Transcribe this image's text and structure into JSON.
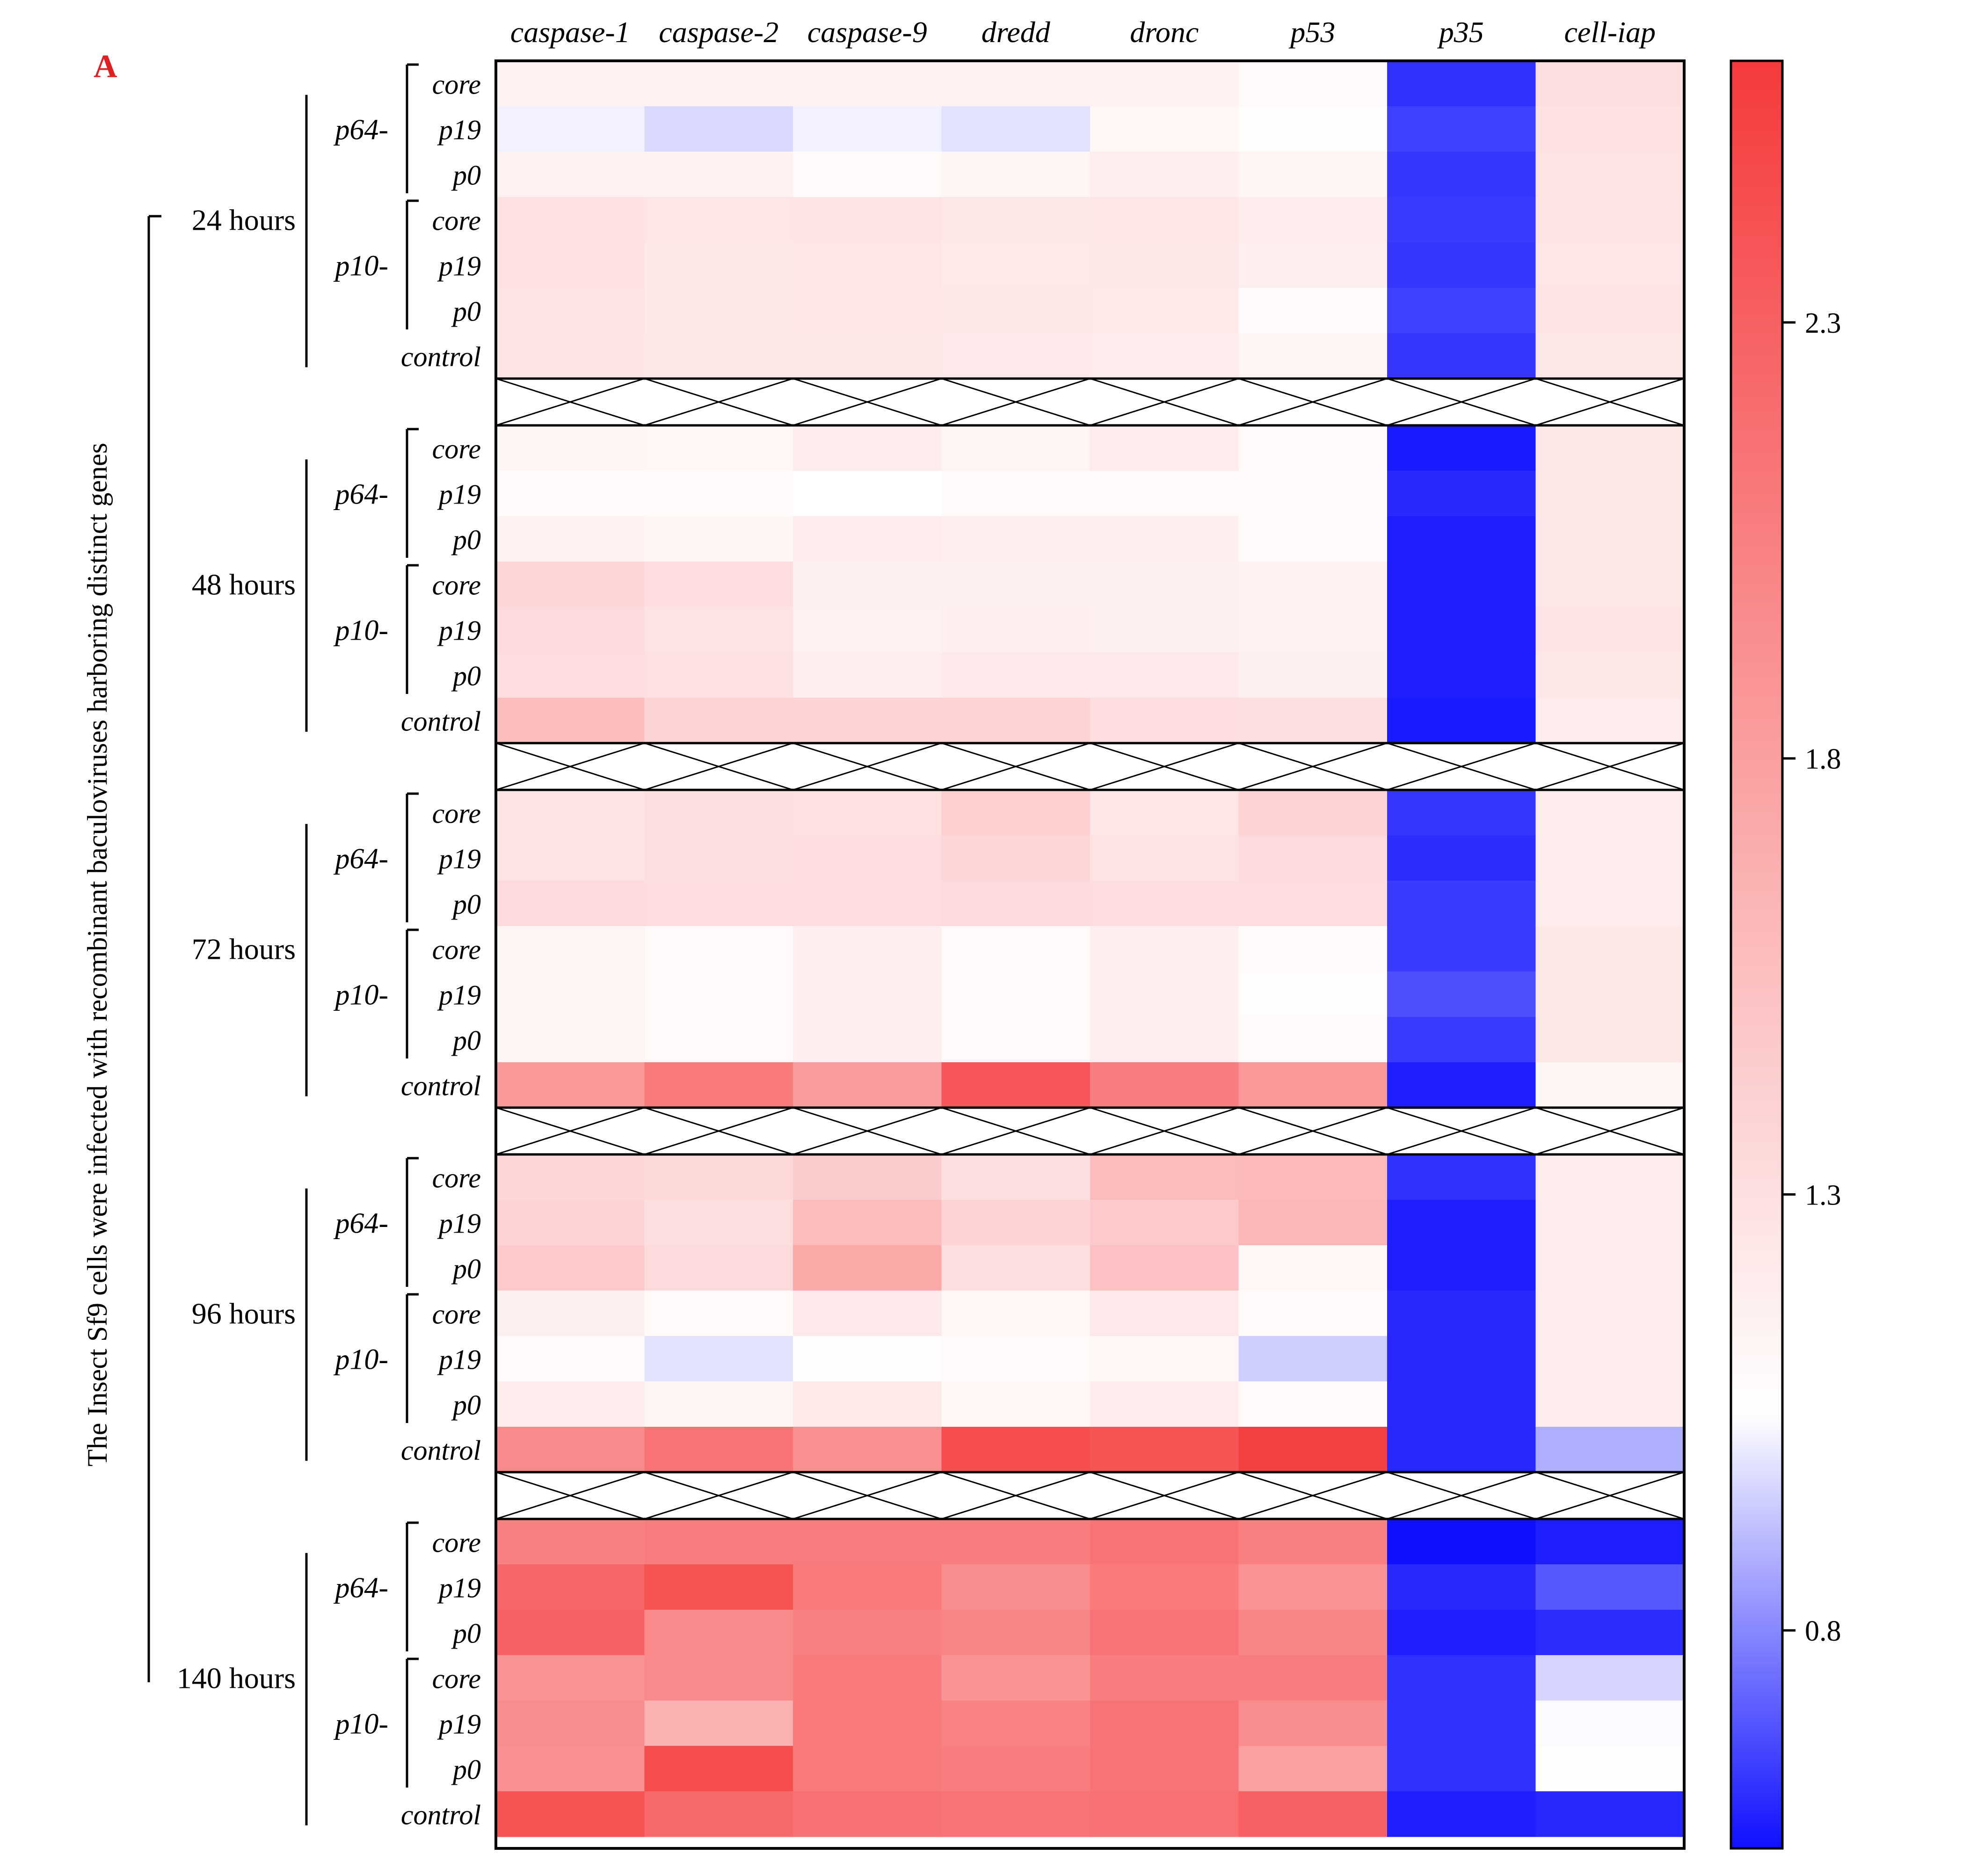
{
  "panel_label": "A",
  "chart_data": {
    "type": "heatmap",
    "y_axis_label": "The Insect Sf9 cells were infected with recombinant baculoviruses harboring distinct genes",
    "columns": [
      "caspase-1",
      "caspase-2",
      "caspase-9",
      "dredd",
      "dronc",
      "p53",
      "p35",
      "cell-iap"
    ],
    "row_labels": [
      "core",
      "p19",
      "p0",
      "core",
      "p19",
      "p0",
      "control"
    ],
    "promoter_labels": [
      "p64-",
      "p10-"
    ],
    "colorbar": {
      "min": 0.55,
      "max": 2.6,
      "ticks": [
        0.8,
        1.3,
        1.8,
        2.3
      ],
      "tick_labels": [
        "0.8",
        "1.3",
        "1.8",
        "2.3"
      ],
      "colors": {
        "low": "#1010ff",
        "mid": "#ffffff",
        "high": "#f53a3c"
      },
      "mid_value": 1.05
    },
    "groups": [
      {
        "label": "24 hours",
        "values": [
          [
            1.15,
            1.15,
            1.15,
            1.16,
            1.16,
            1.1,
            0.62,
            1.3
          ],
          [
            1.02,
            0.97,
            1.02,
            0.99,
            1.12,
            1.07,
            0.65,
            1.28
          ],
          [
            1.16,
            1.15,
            1.1,
            1.13,
            1.18,
            1.13,
            0.63,
            1.27
          ],
          [
            1.28,
            1.25,
            1.26,
            1.24,
            1.25,
            1.2,
            0.64,
            1.26
          ],
          [
            1.28,
            1.24,
            1.25,
            1.23,
            1.24,
            1.18,
            0.63,
            1.25
          ],
          [
            1.27,
            1.24,
            1.25,
            1.24,
            1.23,
            1.08,
            0.65,
            1.26
          ],
          [
            1.26,
            1.24,
            1.24,
            1.22,
            1.2,
            1.14,
            0.63,
            1.24
          ]
        ]
      },
      {
        "label": "48 hours",
        "values": [
          [
            1.13,
            1.12,
            1.2,
            1.14,
            1.2,
            1.1,
            0.57,
            1.24
          ],
          [
            1.08,
            1.08,
            1.05,
            1.1,
            1.1,
            1.08,
            0.6,
            1.24
          ],
          [
            1.15,
            1.13,
            1.2,
            1.18,
            1.18,
            1.09,
            0.58,
            1.24
          ],
          [
            1.37,
            1.32,
            1.17,
            1.17,
            1.17,
            1.15,
            0.58,
            1.24
          ],
          [
            1.33,
            1.27,
            1.16,
            1.18,
            1.17,
            1.16,
            0.58,
            1.26
          ],
          [
            1.32,
            1.29,
            1.18,
            1.22,
            1.22,
            1.17,
            0.58,
            1.24
          ],
          [
            1.57,
            1.4,
            1.4,
            1.4,
            1.32,
            1.3,
            0.57,
            1.2
          ]
        ]
      },
      {
        "label": "72 hours",
        "values": [
          [
            1.26,
            1.3,
            1.28,
            1.43,
            1.25,
            1.4,
            0.63,
            1.21
          ],
          [
            1.27,
            1.3,
            1.32,
            1.37,
            1.27,
            1.33,
            0.61,
            1.21
          ],
          [
            1.33,
            1.32,
            1.32,
            1.33,
            1.32,
            1.32,
            0.64,
            1.21
          ],
          [
            1.13,
            1.1,
            1.18,
            1.1,
            1.18,
            1.08,
            0.64,
            1.24
          ],
          [
            1.13,
            1.1,
            1.18,
            1.09,
            1.18,
            1.07,
            0.68,
            1.24
          ],
          [
            1.13,
            1.1,
            1.18,
            1.1,
            1.18,
            1.08,
            0.64,
            1.24
          ],
          [
            1.85,
            2.1,
            1.83,
            2.38,
            2.07,
            1.87,
            0.58,
            1.13
          ]
        ]
      },
      {
        "label": "96 hours",
        "values": [
          [
            1.37,
            1.35,
            1.45,
            1.3,
            1.58,
            1.6,
            0.62,
            1.2
          ],
          [
            1.4,
            1.3,
            1.58,
            1.4,
            1.47,
            1.62,
            0.58,
            1.2
          ],
          [
            1.47,
            1.33,
            1.73,
            1.3,
            1.53,
            1.12,
            0.58,
            1.2
          ],
          [
            1.17,
            1.1,
            1.22,
            1.12,
            1.22,
            1.08,
            0.6,
            1.2
          ],
          [
            1.1,
            0.99,
            1.07,
            1.09,
            1.12,
            0.95,
            0.6,
            1.2
          ],
          [
            1.2,
            1.13,
            1.23,
            1.12,
            1.2,
            1.1,
            0.6,
            1.2
          ],
          [
            1.97,
            2.15,
            1.93,
            2.45,
            2.4,
            2.55,
            0.6,
            0.88
          ]
        ]
      },
      {
        "label": "140 hours",
        "values": [
          [
            2.05,
            2.08,
            2.08,
            2.07,
            2.15,
            2.05,
            0.55,
            0.58
          ],
          [
            2.25,
            2.4,
            2.1,
            1.95,
            2.1,
            1.9,
            0.6,
            0.7
          ],
          [
            2.3,
            1.97,
            2.05,
            2.0,
            2.15,
            2.0,
            0.58,
            0.61
          ],
          [
            1.9,
            1.97,
            2.1,
            1.9,
            2.07,
            2.07,
            0.62,
            0.96
          ],
          [
            1.95,
            1.67,
            2.1,
            2.03,
            2.15,
            1.95,
            0.62,
            1.04
          ],
          [
            1.93,
            2.45,
            2.1,
            2.07,
            2.15,
            1.8,
            0.62,
            1.06
          ],
          [
            2.4,
            2.23,
            2.17,
            2.15,
            2.17,
            2.3,
            0.58,
            0.6
          ]
        ]
      }
    ]
  }
}
